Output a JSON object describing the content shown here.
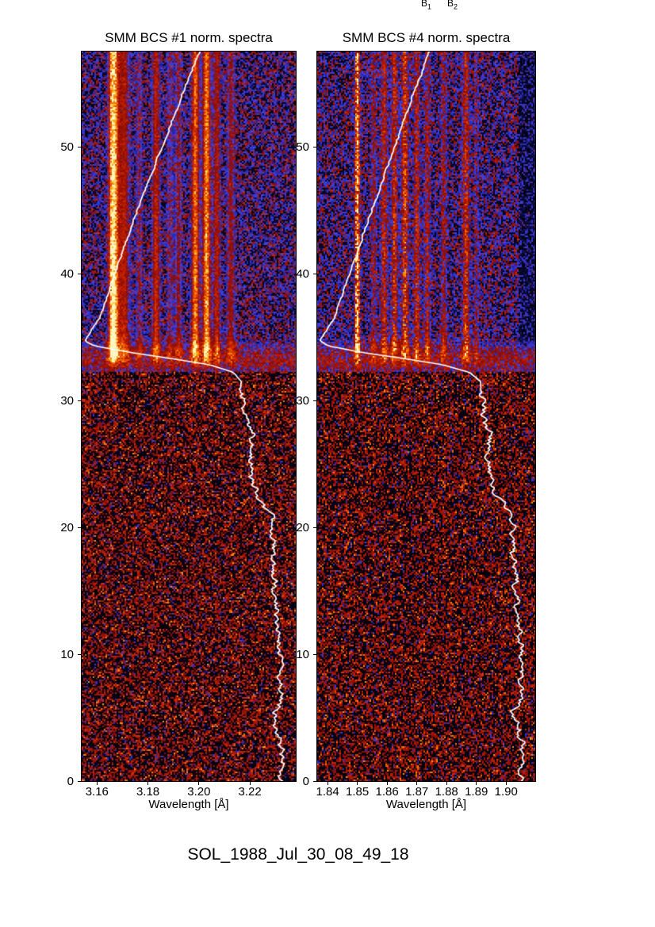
{
  "caption": "SOL_1988_Jul_30_08_49_18",
  "top_labels": [
    {
      "base": "B",
      "sub": "1"
    },
    {
      "base": "B",
      "sub": "2"
    }
  ],
  "colors": {
    "background": "#ffffff",
    "curve": "#ffffff",
    "axis_text": "#000000",
    "colormap_stops": [
      [
        0.0,
        "#000006"
      ],
      [
        0.09,
        "#0a0a30"
      ],
      [
        0.14,
        "#1e1e9e"
      ],
      [
        0.24,
        "#4242e6"
      ],
      [
        0.3,
        "#6e2060"
      ],
      [
        0.34,
        "#820c06"
      ],
      [
        0.46,
        "#aa1400"
      ],
      [
        0.58,
        "#cc2800"
      ],
      [
        0.7,
        "#ea5500"
      ],
      [
        0.81,
        "#ff8400"
      ],
      [
        0.9,
        "#ffc02c"
      ],
      [
        1.0,
        "#fff6c0"
      ]
    ]
  },
  "chart_data": [
    {
      "type": "heatmap",
      "title": "SMM BCS #1 norm. spectra",
      "xlabel": "Wavelength [Å]",
      "ylabel": "",
      "x_range": [
        3.154,
        3.238
      ],
      "x_ticks": [
        {
          "v": 3.16,
          "label": "3.16"
        },
        {
          "v": 3.18,
          "label": "3.18"
        },
        {
          "v": 3.2,
          "label": "3.20"
        },
        {
          "v": 3.22,
          "label": "3.22"
        }
      ],
      "y_range": [
        0,
        57.5
      ],
      "y_ticks": [
        {
          "v": 0,
          "label": "0"
        },
        {
          "v": 10,
          "label": "10"
        },
        {
          "v": 20,
          "label": "20"
        },
        {
          "v": 30,
          "label": "30"
        },
        {
          "v": 40,
          "label": "40"
        },
        {
          "v": 50,
          "label": "50"
        }
      ],
      "flare_onset_index": 32.3,
      "burst_index": 33.2,
      "line_speckle": 0.5,
      "edge_dark": false,
      "emission_lines": [
        {
          "wl": 3.1664,
          "sigma": 0.0013,
          "amp": 1.15
        },
        {
          "wl": 3.1706,
          "sigma": 0.0017,
          "amp": 0.5
        },
        {
          "wl": 3.1766,
          "sigma": 0.001,
          "amp": 0.32
        },
        {
          "wl": 3.1832,
          "sigma": 0.0011,
          "amp": 0.55
        },
        {
          "wl": 3.1886,
          "sigma": 0.001,
          "amp": 0.3
        },
        {
          "wl": 3.192,
          "sigma": 0.001,
          "amp": 0.36
        },
        {
          "wl": 3.1986,
          "sigma": 0.0011,
          "amp": 0.8
        },
        {
          "wl": 3.203,
          "sigma": 0.0011,
          "amp": 0.88
        },
        {
          "wl": 3.207,
          "sigma": 0.001,
          "amp": 0.5
        },
        {
          "wl": 3.2125,
          "sigma": 0.0012,
          "amp": 0.4
        }
      ],
      "lightcurve_points": [
        [
          0,
          0.935
        ],
        [
          3,
          0.93
        ],
        [
          5.5,
          0.895
        ],
        [
          6.5,
          0.93
        ],
        [
          10,
          0.925
        ],
        [
          14,
          0.905
        ],
        [
          18,
          0.9
        ],
        [
          21,
          0.895
        ],
        [
          22.5,
          0.815
        ],
        [
          24,
          0.79
        ],
        [
          26,
          0.785
        ],
        [
          27.5,
          0.8
        ],
        [
          28.5,
          0.77
        ],
        [
          30,
          0.755
        ],
        [
          31.5,
          0.745
        ],
        [
          32.2,
          0.71
        ],
        [
          32.8,
          0.6
        ],
        [
          33.3,
          0.42
        ],
        [
          33.8,
          0.22
        ],
        [
          34.3,
          0.06
        ],
        [
          34.7,
          0.015
        ],
        [
          35.2,
          0.035
        ],
        [
          36.5,
          0.085
        ],
        [
          40,
          0.155
        ],
        [
          45,
          0.26
        ],
        [
          50,
          0.375
        ],
        [
          55,
          0.49
        ],
        [
          57.5,
          0.55
        ]
      ]
    },
    {
      "type": "heatmap",
      "title": "SMM BCS #4 norm. spectra",
      "xlabel": "Wavelength [Å]",
      "ylabel": "",
      "x_range": [
        1.8365,
        1.9098
      ],
      "x_ticks": [
        {
          "v": 1.84,
          "label": "1.84"
        },
        {
          "v": 1.85,
          "label": "1.85"
        },
        {
          "v": 1.86,
          "label": "1.86"
        },
        {
          "v": 1.87,
          "label": "1.87"
        },
        {
          "v": 1.88,
          "label": "1.88"
        },
        {
          "v": 1.89,
          "label": "1.89"
        },
        {
          "v": 1.9,
          "label": "1.90"
        }
      ],
      "y_range": [
        0,
        57.5
      ],
      "y_ticks": [
        {
          "v": 0,
          "label": "0"
        },
        {
          "v": 10,
          "label": "10"
        },
        {
          "v": 20,
          "label": "20"
        },
        {
          "v": 30,
          "label": "30"
        },
        {
          "v": 40,
          "label": "40"
        },
        {
          "v": 50,
          "label": "50"
        }
      ],
      "flare_onset_index": 32.3,
      "burst_index": 33.2,
      "line_speckle": 1.1,
      "edge_dark": true,
      "emission_lines": [
        {
          "wl": 1.85,
          "sigma": 0.0006,
          "amp": 0.95
        },
        {
          "wl": 1.8555,
          "sigma": 0.0008,
          "amp": 0.35
        },
        {
          "wl": 1.859,
          "sigma": 0.0009,
          "amp": 0.5
        },
        {
          "wl": 1.8625,
          "sigma": 0.0008,
          "amp": 0.55
        },
        {
          "wl": 1.866,
          "sigma": 0.0009,
          "amp": 0.62
        },
        {
          "wl": 1.87,
          "sigma": 0.0008,
          "amp": 0.5
        },
        {
          "wl": 1.8735,
          "sigma": 0.0008,
          "amp": 0.45
        },
        {
          "wl": 1.879,
          "sigma": 0.0008,
          "amp": 0.38
        },
        {
          "wl": 1.8865,
          "sigma": 0.0009,
          "amp": 0.55
        },
        {
          "wl": 1.89,
          "sigma": 0.0006,
          "amp": 0.3
        }
      ],
      "lightcurve_points": [
        [
          0,
          0.93
        ],
        [
          3,
          0.945
        ],
        [
          5.5,
          0.9
        ],
        [
          6.5,
          0.94
        ],
        [
          10,
          0.935
        ],
        [
          14,
          0.92
        ],
        [
          18,
          0.905
        ],
        [
          21,
          0.9
        ],
        [
          22.5,
          0.82
        ],
        [
          24,
          0.79
        ],
        [
          26,
          0.78
        ],
        [
          27.5,
          0.795
        ],
        [
          28.5,
          0.77
        ],
        [
          30,
          0.755
        ],
        [
          31.5,
          0.75
        ],
        [
          32.2,
          0.7
        ],
        [
          32.8,
          0.58
        ],
        [
          33.3,
          0.4
        ],
        [
          33.8,
          0.2
        ],
        [
          34.3,
          0.05
        ],
        [
          34.7,
          0.012
        ],
        [
          35.2,
          0.03
        ],
        [
          36.5,
          0.08
        ],
        [
          40,
          0.15
        ],
        [
          45,
          0.25
        ],
        [
          50,
          0.355
        ],
        [
          55,
          0.46
        ],
        [
          57.5,
          0.515
        ]
      ]
    }
  ]
}
